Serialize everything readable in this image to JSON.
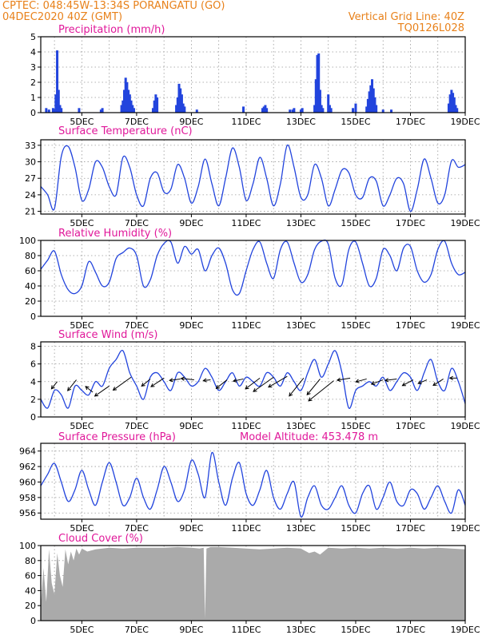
{
  "header": {
    "line1": "CPTEC:   048:45W-13:34S   PORANGATU (GO)",
    "line2": "04DEC2020 40Z (GMT)",
    "right1": "Vertical Grid Line: 40Z",
    "right2": "TQ0126L028"
  },
  "colors": {
    "header": "#e8811a",
    "title": "#e0189a",
    "line": "#2244dd",
    "bar": "#2244dd",
    "cloud": "#aaaaaa",
    "grid": "#999999"
  },
  "x_ticks": [
    "5DEC",
    "7DEC",
    "9DEC",
    "11DEC",
    "13DEC",
    "15DEC",
    "17DEC",
    "19DEC"
  ],
  "chart_data": [
    {
      "id": "precip",
      "type": "bar",
      "title": "Precipitation (mm/h)",
      "ylim": [
        0,
        5
      ],
      "yticks": [
        "0",
        "1",
        "2",
        "3",
        "4",
        "5"
      ],
      "x": [
        3.7,
        3.8,
        3.95,
        4.0,
        4.05,
        4.1,
        4.15,
        4.2,
        4.25,
        4.9,
        5.7,
        5.75,
        6.45,
        6.5,
        6.55,
        6.6,
        6.65,
        6.7,
        6.75,
        6.8,
        6.85,
        6.9,
        7.6,
        7.65,
        7.7,
        7.75,
        8.45,
        8.5,
        8.55,
        8.6,
        8.65,
        8.7,
        8.75,
        9.2,
        10.9,
        11.6,
        11.65,
        11.7,
        11.75,
        12.6,
        12.7,
        12.75,
        13.0,
        13.05,
        13.5,
        13.55,
        13.6,
        13.65,
        13.7,
        13.75,
        13.8,
        14.0,
        14.05,
        14.1,
        14.9,
        15.0,
        15.4,
        15.45,
        15.5,
        15.55,
        15.6,
        15.65,
        15.7,
        15.75,
        16.0,
        16.3,
        18.4,
        18.45,
        18.5,
        18.55,
        18.6,
        18.65,
        18.7
      ],
      "values": [
        0.3,
        0.2,
        0.3,
        0.2,
        1.2,
        4.1,
        1.5,
        0.5,
        0.3,
        0.3,
        0.2,
        0.3,
        0.5,
        0.8,
        1.5,
        2.3,
        2.0,
        1.5,
        1.2,
        0.8,
        0.5,
        0.3,
        0.3,
        0.8,
        1.2,
        1.0,
        0.5,
        1.0,
        1.9,
        1.6,
        1.2,
        0.6,
        0.4,
        0.2,
        0.4,
        0.3,
        0.4,
        0.5,
        0.3,
        0.2,
        0.2,
        0.3,
        0.2,
        0.3,
        0.5,
        2.2,
        3.8,
        3.9,
        1.5,
        0.5,
        0.3,
        1.2,
        0.5,
        0.3,
        0.3,
        0.6,
        0.4,
        0.9,
        1.4,
        1.8,
        2.2,
        1.6,
        1.0,
        0.5,
        0.2,
        0.2,
        0.6,
        1.2,
        1.5,
        1.3,
        1.0,
        0.5,
        0.3
      ]
    },
    {
      "id": "temp",
      "type": "line",
      "title": "Surface Temperature (nC)",
      "ylim": [
        20.5,
        34
      ],
      "yticks": [
        "21",
        "24",
        "27",
        "30",
        "33"
      ],
      "ytick_values": [
        21,
        24,
        27,
        30,
        33
      ],
      "x": [
        3.5,
        3.75,
        4.0,
        4.25,
        4.5,
        4.75,
        5.0,
        5.25,
        5.5,
        5.75,
        6.0,
        6.25,
        6.5,
        6.75,
        7.0,
        7.25,
        7.5,
        7.75,
        8.0,
        8.25,
        8.5,
        8.75,
        9.0,
        9.25,
        9.5,
        9.75,
        10.0,
        10.25,
        10.5,
        10.75,
        11.0,
        11.25,
        11.5,
        11.75,
        12.0,
        12.25,
        12.5,
        12.75,
        13.0,
        13.25,
        13.5,
        13.75,
        14.0,
        14.25,
        14.5,
        14.75,
        15.0,
        15.25,
        15.5,
        15.75,
        16.0,
        16.25,
        16.5,
        16.75,
        17.0,
        17.25,
        17.5,
        17.75,
        18.0,
        18.25,
        18.5,
        18.75,
        19.0
      ],
      "values": [
        25.5,
        24,
        21.5,
        31,
        32.8,
        29,
        23,
        25,
        30,
        29,
        25.5,
        24,
        30.8,
        29,
        24,
        22,
        27,
        28,
        24.5,
        25,
        29.5,
        27,
        22.5,
        25.5,
        30.5,
        26,
        22,
        27,
        32.5,
        29,
        23,
        26,
        30.8,
        27,
        22,
        26,
        33,
        29,
        23.5,
        24,
        29.5,
        27,
        22,
        25,
        28.5,
        28,
        24,
        23.5,
        27,
        26.5,
        22,
        24,
        27,
        26,
        21,
        25,
        30.5,
        27,
        22.5,
        24,
        30.2,
        29,
        29.5
      ]
    },
    {
      "id": "rh",
      "type": "line",
      "title": "Relative Humidity (%)",
      "ylim": [
        0,
        100
      ],
      "yticks": [
        "0",
        "20",
        "40",
        "60",
        "80",
        "100"
      ],
      "x": [
        3.5,
        3.75,
        4.0,
        4.25,
        4.5,
        4.75,
        5.0,
        5.25,
        5.5,
        5.75,
        6.0,
        6.25,
        6.5,
        6.75,
        7.0,
        7.25,
        7.5,
        7.75,
        8.0,
        8.25,
        8.5,
        8.75,
        9.0,
        9.25,
        9.5,
        9.75,
        10.0,
        10.25,
        10.5,
        10.75,
        11.0,
        11.25,
        11.5,
        11.75,
        12.0,
        12.25,
        12.5,
        12.75,
        13.0,
        13.25,
        13.5,
        13.75,
        14.0,
        14.25,
        14.5,
        14.75,
        15.0,
        15.25,
        15.5,
        15.75,
        16.0,
        16.25,
        16.5,
        16.75,
        17.0,
        17.25,
        17.5,
        17.75,
        18.0,
        18.25,
        18.5,
        18.75,
        19.0
      ],
      "values": [
        62,
        74,
        86,
        55,
        35,
        30,
        40,
        72,
        58,
        40,
        45,
        76,
        84,
        90,
        80,
        40,
        48,
        80,
        96,
        98,
        70,
        92,
        82,
        88,
        60,
        80,
        90,
        70,
        35,
        30,
        60,
        88,
        98,
        70,
        50,
        88,
        98,
        70,
        45,
        55,
        88,
        99,
        95,
        50,
        42,
        88,
        98,
        70,
        40,
        50,
        88,
        80,
        60,
        90,
        92,
        60,
        45,
        55,
        88,
        99,
        70,
        55,
        58
      ]
    },
    {
      "id": "wind",
      "type": "line",
      "title": "Surface Wind (m/s)",
      "ylim": [
        0,
        8.5
      ],
      "yticks": [
        "0",
        "2",
        "4",
        "6",
        "8"
      ],
      "ytick_values": [
        0,
        2,
        4,
        6,
        8
      ],
      "x": [
        3.5,
        3.75,
        4.0,
        4.25,
        4.5,
        4.75,
        5.0,
        5.25,
        5.5,
        5.75,
        6.0,
        6.25,
        6.5,
        6.75,
        7.0,
        7.25,
        7.5,
        7.75,
        8.0,
        8.25,
        8.5,
        8.75,
        9.0,
        9.25,
        9.5,
        9.75,
        10.0,
        10.25,
        10.5,
        10.75,
        11.0,
        11.25,
        11.5,
        11.75,
        12.0,
        12.25,
        12.5,
        12.75,
        13.0,
        13.25,
        13.5,
        13.75,
        14.0,
        14.25,
        14.5,
        14.75,
        15.0,
        15.25,
        15.5,
        15.75,
        16.0,
        16.25,
        16.5,
        16.75,
        17.0,
        17.25,
        17.5,
        17.75,
        18.0,
        18.25,
        18.5,
        18.75,
        19.0
      ],
      "values": [
        2.0,
        1.0,
        3.0,
        2.5,
        1.0,
        3.5,
        3.0,
        2.5,
        4.0,
        3.5,
        5.5,
        6.5,
        7.5,
        5.0,
        3.5,
        2.0,
        4.5,
        5.0,
        4.0,
        3.0,
        5.0,
        4.5,
        3.5,
        4.0,
        5.5,
        4.5,
        3.0,
        4.0,
        5.0,
        3.5,
        4.5,
        4.0,
        3.5,
        5.0,
        4.5,
        3.5,
        5.0,
        4.0,
        3.0,
        5.0,
        6.5,
        4.5,
        6.0,
        7.5,
        5.0,
        1.0,
        3.0,
        3.5,
        4.0,
        3.5,
        4.5,
        3.0,
        4.0,
        5.0,
        4.5,
        3.0,
        5.0,
        6.5,
        4.0,
        3.0,
        5.5,
        4.0,
        1.5
      ],
      "vectors": {
        "x": [
          4.1,
          4.8,
          5.4,
          6.0,
          6.8,
          7.5,
          8.0,
          8.6,
          9.1,
          9.7,
          10.3,
          10.9,
          11.5,
          12.0,
          12.5,
          13.1,
          13.7,
          14.2,
          14.8,
          15.4,
          16.0,
          16.5,
          17.1,
          17.6,
          18.2,
          18.7
        ],
        "y": [
          4.0,
          4.2,
          2.8,
          3.5,
          4.5,
          4.3,
          4.4,
          4.3,
          4.2,
          4.2,
          4.2,
          4.3,
          4.4,
          4.5,
          4.6,
          4.4,
          4.3,
          4.1,
          4.4,
          4.3,
          4.2,
          4.3,
          4.2,
          4.2,
          4.3,
          4.4
        ],
        "u": [
          -0.8,
          -1.2,
          -1.0,
          -2.0,
          -2.5,
          -1.2,
          -1.8,
          -1.5,
          -1.8,
          -1.0,
          -1.5,
          -1.4,
          -2.0,
          -2.8,
          -2.6,
          -2.0,
          -1.8,
          -3.5,
          -1.8,
          -1.5,
          -1.6,
          -1.6,
          -1.5,
          -1.2,
          -1.4,
          -1.0
        ],
        "v": [
          -1.0,
          -1.5,
          0.8,
          -1.4,
          -1.8,
          -1.0,
          -1.2,
          -0.2,
          0.2,
          -0.1,
          -1.2,
          -0.3,
          -1.5,
          -2.0,
          -1.5,
          -2.5,
          -2.2,
          -2.8,
          -0.3,
          -0.4,
          -0.6,
          -0.2,
          -0.8,
          -0.5,
          -0.9,
          0.0
        ]
      }
    },
    {
      "id": "press",
      "type": "line",
      "title": "Surface Pressure (hPa)",
      "annotation": "Model Altitude: 453.478 m",
      "ylim": [
        955.2,
        965
      ],
      "yticks": [
        "956",
        "958",
        "960",
        "962",
        "964"
      ],
      "ytick_values": [
        956,
        958,
        960,
        962,
        964
      ],
      "x": [
        3.5,
        3.75,
        4.0,
        4.25,
        4.5,
        4.75,
        5.0,
        5.25,
        5.5,
        5.75,
        6.0,
        6.25,
        6.5,
        6.75,
        7.0,
        7.25,
        7.5,
        7.75,
        8.0,
        8.25,
        8.5,
        8.75,
        9.0,
        9.25,
        9.5,
        9.75,
        10.0,
        10.25,
        10.5,
        10.75,
        11.0,
        11.25,
        11.5,
        11.75,
        12.0,
        12.25,
        12.5,
        12.75,
        13.0,
        13.25,
        13.5,
        13.75,
        14.0,
        14.25,
        14.5,
        14.75,
        15.0,
        15.25,
        15.5,
        15.75,
        16.0,
        16.25,
        16.5,
        16.75,
        17.0,
        17.25,
        17.5,
        17.75,
        18.0,
        18.25,
        18.5,
        18.75,
        19.0
      ],
      "values": [
        959.5,
        961,
        962.4,
        960,
        957.5,
        959,
        961.5,
        959,
        957,
        960,
        962.5,
        960,
        957,
        958,
        960.5,
        958,
        956.5,
        959,
        962,
        960,
        957.5,
        959,
        962.8,
        961,
        958,
        963.8,
        960,
        957,
        960.5,
        962.5,
        958.5,
        957,
        959,
        961.5,
        958,
        956.5,
        958.5,
        960,
        955.5,
        958,
        959.5,
        957,
        956.5,
        958,
        959.5,
        957,
        956,
        958.5,
        959.5,
        956.5,
        958,
        960,
        957.5,
        957,
        959,
        958.5,
        956.5,
        958,
        959.5,
        957.5,
        956,
        959,
        957
      ]
    },
    {
      "id": "cloud",
      "type": "area",
      "title": "Cloud Cover (%)",
      "ylim": [
        0,
        100
      ],
      "yticks": [
        "0",
        "20",
        "40",
        "60",
        "80",
        "100"
      ],
      "x": [
        3.5,
        3.6,
        3.7,
        3.8,
        3.9,
        4.0,
        4.1,
        4.2,
        4.3,
        4.4,
        4.5,
        4.6,
        4.7,
        4.8,
        4.9,
        5.0,
        5.2,
        5.5,
        6.0,
        6.5,
        7.0,
        7.5,
        8.0,
        8.5,
        9.0,
        9.3,
        9.45,
        9.5,
        9.55,
        9.7,
        10.0,
        10.5,
        11.0,
        11.5,
        12.0,
        12.5,
        13.0,
        13.3,
        13.5,
        13.7,
        14.0,
        14.5,
        15.0,
        15.5,
        16.0,
        16.5,
        17.0,
        17.5,
        18.0,
        18.5,
        19.0
      ],
      "values": [
        20,
        70,
        25,
        95,
        50,
        35,
        90,
        60,
        45,
        95,
        75,
        92,
        80,
        96,
        88,
        96,
        92,
        95,
        97,
        96,
        97,
        97,
        97,
        98,
        97,
        96,
        97,
        3,
        96,
        98,
        98,
        97,
        96,
        95,
        96,
        97,
        96,
        90,
        92,
        88,
        97,
        96,
        97,
        96,
        97,
        96,
        97,
        96,
        97,
        96,
        95
      ]
    }
  ]
}
